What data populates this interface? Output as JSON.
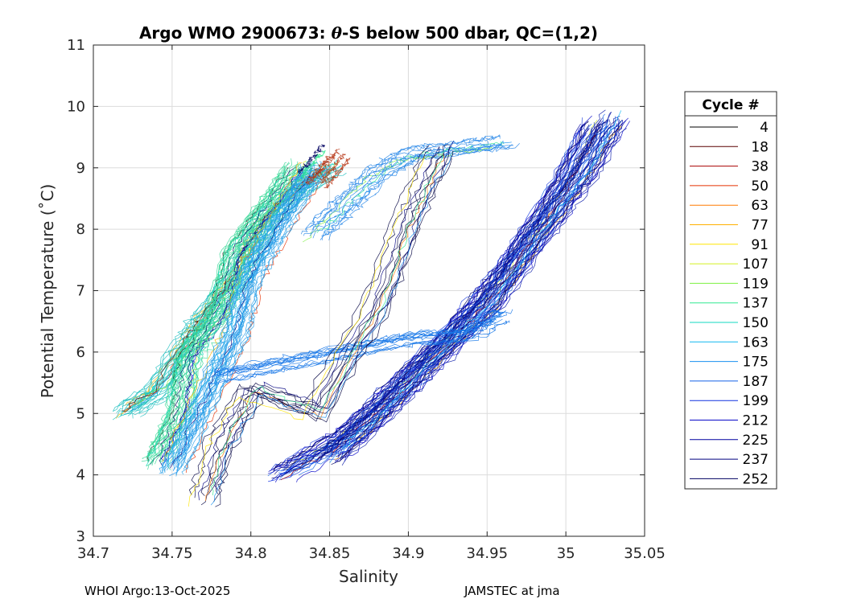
{
  "chart_data": {
    "type": "line",
    "title_prefix": "Argo WMO 2900673: ",
    "title_theta": "θ",
    "title_suffix": "-S below 500 dbar,  QC=(1,2)",
    "xlabel": "Salinity",
    "ylabel": "Potential Temperature (˚C)",
    "xlim": [
      34.7,
      35.05
    ],
    "ylim": [
      3,
      11
    ],
    "xticks": [
      34.7,
      34.75,
      34.8,
      34.85,
      34.9,
      34.95,
      35,
      35.05
    ],
    "xtick_labels": [
      "34.7",
      "34.75",
      "34.8",
      "34.85",
      "34.9",
      "34.95",
      "35",
      "35.05"
    ],
    "yticks": [
      3,
      4,
      5,
      6,
      7,
      8,
      9,
      10,
      11
    ],
    "ytick_labels": [
      "3",
      "4",
      "5",
      "6",
      "7",
      "8",
      "9",
      "10",
      "11"
    ],
    "grid": true,
    "legend": {
      "title": "Cycle #",
      "placement": "outside-right",
      "entries": [
        {
          "label": "4",
          "color": "#000000"
        },
        {
          "label": "18",
          "color": "#5a0000"
        },
        {
          "label": "38",
          "color": "#a80000"
        },
        {
          "label": "50",
          "color": "#e53000"
        },
        {
          "label": "63",
          "color": "#ff7a00"
        },
        {
          "label": "77",
          "color": "#ffb000"
        },
        {
          "label": "91",
          "color": "#ffe600"
        },
        {
          "label": "107",
          "color": "#d4f020"
        },
        {
          "label": "119",
          "color": "#7cf040"
        },
        {
          "label": "137",
          "color": "#30e890"
        },
        {
          "label": "150",
          "color": "#10d8c0"
        },
        {
          "label": "163",
          "color": "#10b8f0"
        },
        {
          "label": "175",
          "color": "#1890f0"
        },
        {
          "label": "187",
          "color": "#1460e8"
        },
        {
          "label": "199",
          "color": "#1030e0"
        },
        {
          "label": "212",
          "color": "#0808c8"
        },
        {
          "label": "225",
          "color": "#0000a0"
        },
        {
          "label": "237",
          "color": "#000080"
        },
        {
          "label": "252",
          "color": "#000060"
        }
      ]
    },
    "clusters": [
      {
        "color": "#20c0c0",
        "path_s": [
          34.72,
          34.74,
          34.76,
          34.77,
          34.79,
          34.8,
          34.81,
          34.83,
          34.85
        ],
        "path_t": [
          5.05,
          5.4,
          6.2,
          6.6,
          7.2,
          7.7,
          8.2,
          8.7,
          9.0
        ]
      },
      {
        "color": "#38d898",
        "path_s": [
          34.74,
          34.755,
          34.76,
          34.78,
          34.79,
          34.81,
          34.83
        ],
        "path_t": [
          4.2,
          5.0,
          5.9,
          6.6,
          7.6,
          8.3,
          9.0
        ]
      },
      {
        "color": "#2aa0e8",
        "path_s": [
          34.75,
          34.77,
          34.79,
          34.8,
          34.82,
          34.84
        ],
        "path_t": [
          4.1,
          5.2,
          6.3,
          7.3,
          8.2,
          9.0
        ]
      },
      {
        "color": "#b83818",
        "path_s": [
          34.84,
          34.845,
          34.85,
          34.855
        ],
        "path_t": [
          8.8,
          8.95,
          9.1,
          9.25
        ]
      },
      {
        "color": "#1a3ce0",
        "path_s": [
          34.82,
          34.86,
          34.89,
          34.93,
          34.96,
          34.99,
          35.02
        ],
        "path_t": [
          4.0,
          4.6,
          5.3,
          6.3,
          7.2,
          8.3,
          9.7
        ]
      },
      {
        "color": "#0a1aa8",
        "path_s": [
          34.85,
          34.88,
          34.91,
          34.95,
          34.98,
          35.01,
          35.03
        ],
        "path_t": [
          4.3,
          5.0,
          5.8,
          6.8,
          7.9,
          8.9,
          9.8
        ]
      },
      {
        "color": "#1878e8",
        "path_s": [
          34.78,
          34.82,
          34.86,
          34.9,
          34.94,
          34.96
        ],
        "path_t": [
          5.6,
          5.8,
          6.0,
          6.2,
          6.3,
          6.6
        ]
      },
      {
        "color": "#2a88e8",
        "path_s": [
          34.84,
          34.86,
          34.88,
          34.9,
          34.93,
          34.96
        ],
        "path_t": [
          7.9,
          8.4,
          8.9,
          9.2,
          9.3,
          9.4
        ]
      },
      {
        "color": "#000040",
        "path_s": [
          34.77,
          34.78,
          34.8,
          34.84,
          34.88,
          34.9,
          34.92
        ],
        "path_t": [
          3.6,
          4.5,
          5.4,
          5.0,
          6.8,
          8.2,
          9.3
        ]
      }
    ]
  },
  "footer": {
    "left": "WHOI Argo:13-Oct-2025",
    "right": "JAMSTEC at jma"
  }
}
